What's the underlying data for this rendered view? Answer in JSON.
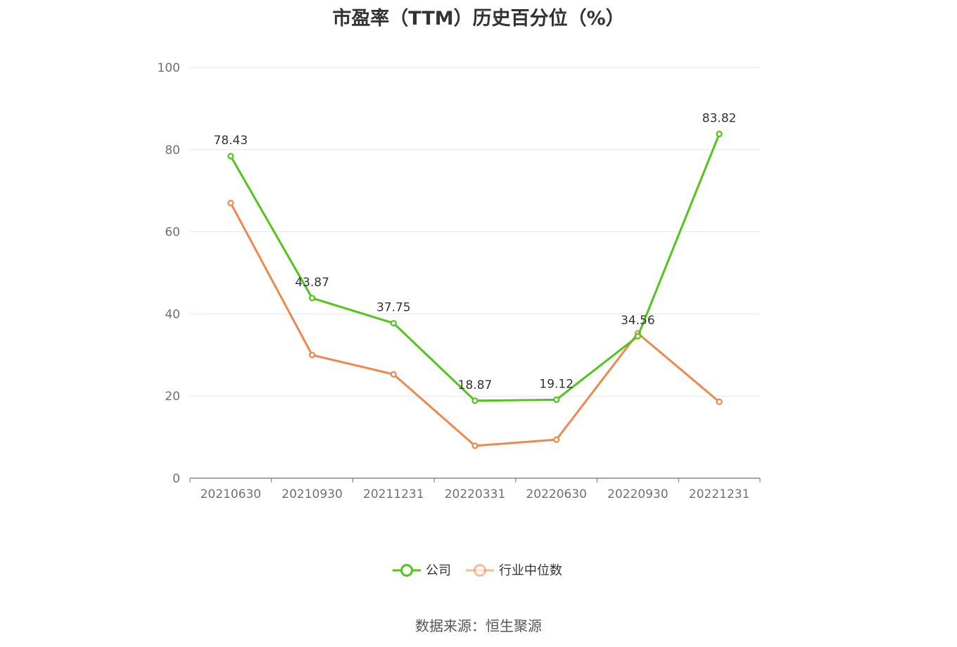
{
  "chart_data": {
    "type": "line",
    "title": "市盈率（TTM）历史百分位（%）",
    "categories": [
      "20210630",
      "20210930",
      "20211231",
      "20220331",
      "20220630",
      "20220930",
      "20221231"
    ],
    "ylim": [
      0,
      100
    ],
    "yticks": [
      0,
      20,
      40,
      60,
      80,
      100
    ],
    "grid": true,
    "legend_position": "bottom",
    "series": [
      {
        "name": "公司",
        "color": "#52c41a",
        "values": [
          78.43,
          43.87,
          37.75,
          18.87,
          19.12,
          34.56,
          83.82
        ],
        "labels": [
          "78.43",
          "43.87",
          "37.75",
          "18.87",
          "19.12",
          "34.56",
          "83.82"
        ]
      },
      {
        "name": "行业中位数",
        "color": "#f0884d",
        "values": [
          67.0,
          30.0,
          25.3,
          7.9,
          9.4,
          35.3,
          18.6
        ]
      }
    ]
  },
  "source_note": "数据来源：恒生聚源"
}
